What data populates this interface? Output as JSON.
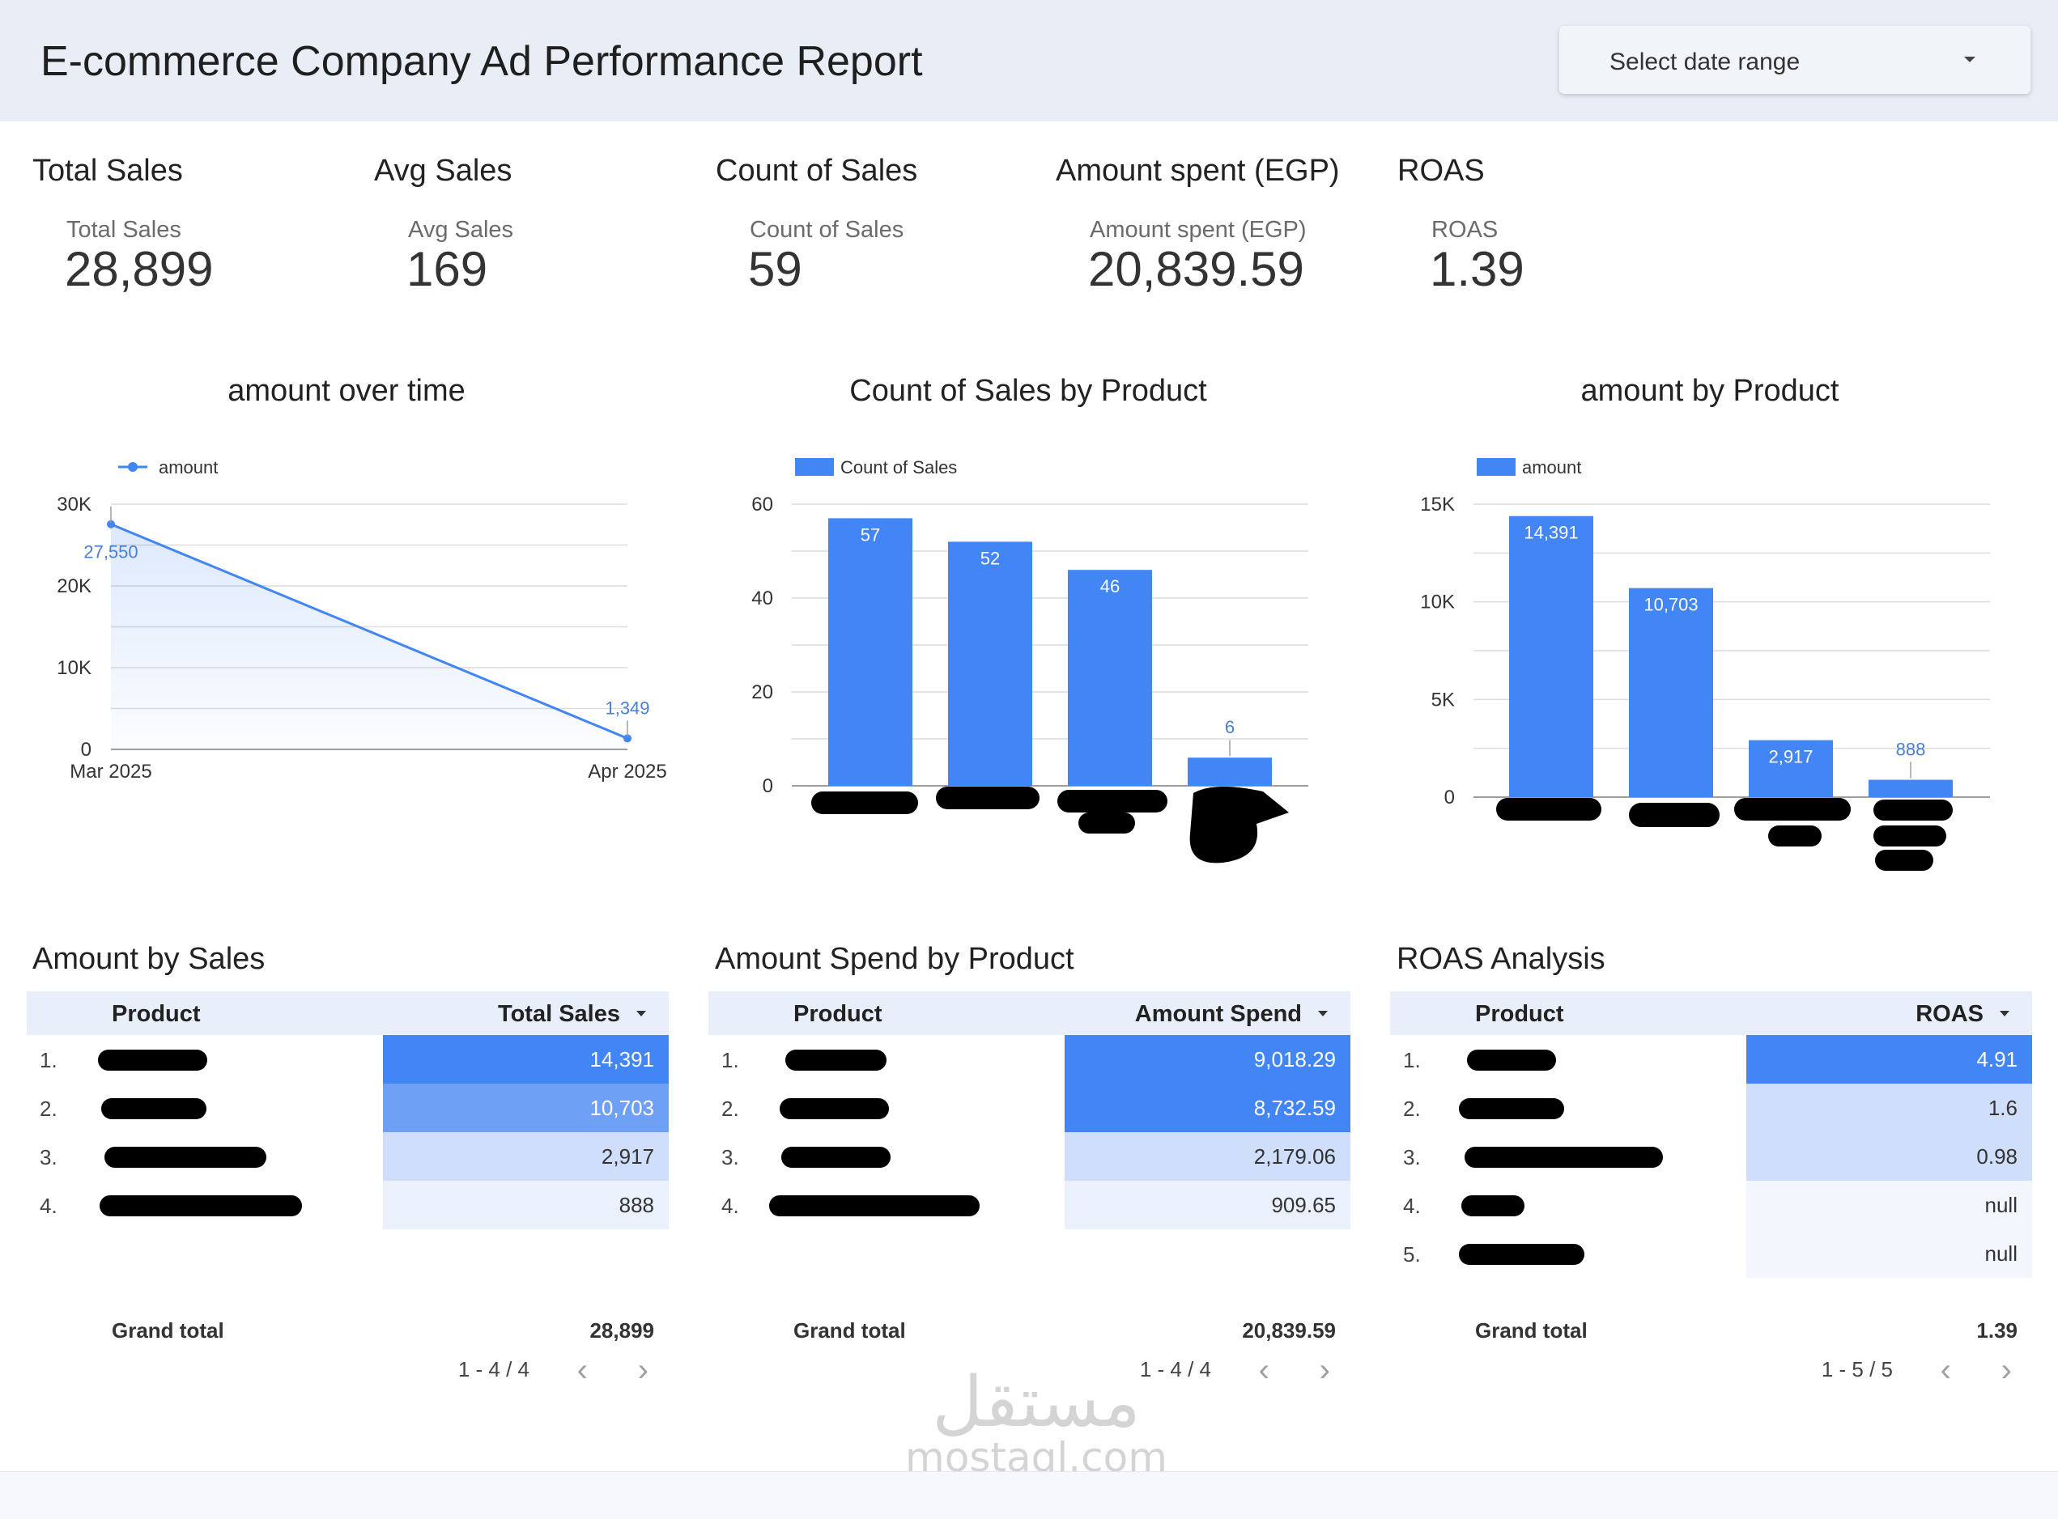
{
  "header": {
    "title": "E-commerce Company Ad Performance Report",
    "date_range_label": "Select date range"
  },
  "kpis": [
    {
      "title": "Total Sales",
      "label": "Total Sales",
      "value": "28,899"
    },
    {
      "title": "Avg Sales",
      "label": "Avg Sales",
      "value": "169"
    },
    {
      "title": "Count of Sales",
      "label": "Count of Sales",
      "value": "59"
    },
    {
      "title": "Amount spent (EGP)",
      "label": "Amount spent (EGP)",
      "value": "20,839.59"
    },
    {
      "title": "ROAS",
      "label": "ROAS",
      "value": "1.39"
    }
  ],
  "colors": {
    "accent": "#4285f4",
    "bar_strong": "#4285f4",
    "bar_mid": "#6ea0f6",
    "bar_light": "#cfdefb",
    "bar_faint": "#eaf1fd",
    "bar_none": "#f3f6fc"
  },
  "chart_data": [
    {
      "type": "line",
      "title": "amount over time",
      "legend": "amount",
      "x": [
        "Mar 2025",
        "Apr 2025"
      ],
      "series": [
        {
          "name": "amount",
          "values": [
            27550,
            1349
          ]
        }
      ],
      "data_labels": [
        "27,550",
        "1,349"
      ],
      "yticks": [
        0,
        10000,
        20000,
        30000
      ],
      "ytick_labels": [
        "0",
        "10K",
        "20K",
        "30K"
      ],
      "ylim": [
        0,
        30000
      ]
    },
    {
      "type": "bar",
      "title": "Count of Sales by Product",
      "legend": "Count of Sales",
      "categories": [
        "",
        "",
        "",
        ""
      ],
      "values": [
        57,
        52,
        46,
        6
      ],
      "data_labels": [
        "57",
        "52",
        "46",
        "6"
      ],
      "yticks": [
        0,
        20,
        40,
        60
      ],
      "ytick_labels": [
        "0",
        "20",
        "40",
        "60"
      ],
      "ylim": [
        0,
        60
      ]
    },
    {
      "type": "bar",
      "title": "amount by Product",
      "legend": "amount",
      "categories": [
        "",
        "",
        "",
        ""
      ],
      "values": [
        14391,
        10703,
        2917,
        888
      ],
      "data_labels": [
        "14,391",
        "10,703",
        "2,917",
        "888"
      ],
      "yticks": [
        0,
        5000,
        10000,
        15000
      ],
      "ytick_labels": [
        "0",
        "5K",
        "10K",
        "15K"
      ],
      "ylim": [
        0,
        15000
      ]
    }
  ],
  "tables": [
    {
      "title": "Amount by Sales",
      "col_product": "Product",
      "col_metric": "Total Sales",
      "rows": [
        {
          "idx": "1.",
          "value": "14,391",
          "level": "strong"
        },
        {
          "idx": "2.",
          "value": "10,703",
          "level": "mid"
        },
        {
          "idx": "3.",
          "value": "2,917",
          "level": "light"
        },
        {
          "idx": "4.",
          "value": "888",
          "level": "faint"
        }
      ],
      "grand_total_label": "Grand total",
      "grand_total": "28,899",
      "pagination": "1 - 4 / 4"
    },
    {
      "title": "Amount Spend by Product",
      "col_product": "Product",
      "col_metric": "Amount Spend",
      "rows": [
        {
          "idx": "1.",
          "value": "9,018.29",
          "level": "strong"
        },
        {
          "idx": "2.",
          "value": "8,732.59",
          "level": "strong"
        },
        {
          "idx": "3.",
          "value": "2,179.06",
          "level": "light"
        },
        {
          "idx": "4.",
          "value": "909.65",
          "level": "faint"
        }
      ],
      "grand_total_label": "Grand total",
      "grand_total": "20,839.59",
      "pagination": "1 - 4 / 4"
    },
    {
      "title": "ROAS Analysis",
      "col_product": "Product",
      "col_metric": "ROAS",
      "rows": [
        {
          "idx": "1.",
          "value": "4.91",
          "level": "strong"
        },
        {
          "idx": "2.",
          "value": "1.6",
          "level": "light"
        },
        {
          "idx": "3.",
          "value": "0.98",
          "level": "light"
        },
        {
          "idx": "4.",
          "value": "null",
          "level": "none"
        },
        {
          "idx": "5.",
          "value": "null",
          "level": "none"
        }
      ],
      "grand_total_label": "Grand total",
      "grand_total": "1.39",
      "pagination": "1 - 5 / 5"
    }
  ],
  "watermark": {
    "arabic": "مستقل",
    "latin": "mostaql.com"
  }
}
